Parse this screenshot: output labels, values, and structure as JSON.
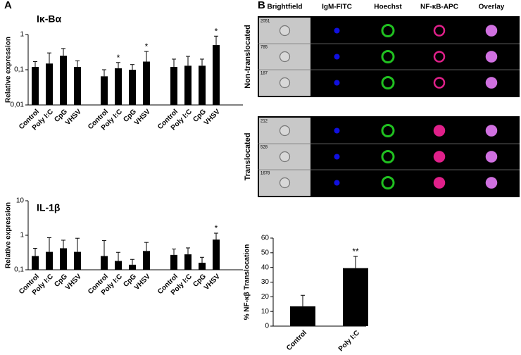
{
  "panel_labels": [
    "A",
    "B"
  ],
  "chart_data": [
    {
      "type": "bar",
      "title": "Iκ-Bα",
      "y_label": "Relative expression",
      "log_scale": true,
      "color": "#000000",
      "categories": [
        "Control",
        "Poly I:C",
        "CpG",
        "VHSV",
        "Control",
        "Poly I:C",
        "CpG",
        "VHSV",
        "Control",
        "Poly I:C",
        "CpG",
        "VHSV"
      ],
      "values": [
        0.12,
        0.15,
        0.25,
        0.12,
        0.065,
        0.11,
        0.1,
        0.17,
        0.12,
        0.13,
        0.13,
        0.5
      ],
      "errors": [
        0.05,
        0.15,
        0.15,
        0.06,
        0.035,
        0.05,
        0.04,
        0.16,
        0.08,
        0.11,
        0.07,
        0.4
      ],
      "significance": [
        null,
        null,
        null,
        null,
        null,
        "*",
        null,
        "*",
        null,
        null,
        null,
        "*"
      ],
      "ylim": [
        0.01,
        1
      ],
      "yticks": [
        {
          "value": 0.01,
          "label": "0,01"
        },
        {
          "value": 0.1,
          "label": "0,1"
        },
        1
      ]
    },
    {
      "type": "bar",
      "title": "IL-1β",
      "y_label": "Relative expression",
      "log_scale": true,
      "color": "#000000",
      "categories": [
        "Control",
        "Poly I:C",
        "CpG",
        "VHSV",
        "Control",
        "Poly I:C",
        "CpG",
        "VHSV",
        "Control",
        "Poly I:C",
        "CpG",
        "VHSV"
      ],
      "values": [
        0.25,
        0.33,
        0.42,
        0.33,
        0.25,
        0.18,
        0.14,
        0.35,
        0.27,
        0.28,
        0.16,
        0.75
      ],
      "errors": [
        0.17,
        0.52,
        0.3,
        0.49,
        0.45,
        0.14,
        0.06,
        0.27,
        0.13,
        0.15,
        0.07,
        0.4
      ],
      "significance": [
        null,
        null,
        null,
        null,
        null,
        null,
        null,
        null,
        null,
        null,
        null,
        "*"
      ],
      "ylim": [
        0.1,
        10
      ],
      "yticks": [
        {
          "value": 0.1,
          "label": "0,1"
        },
        1,
        10
      ]
    },
    {
      "type": "bar",
      "y_label": "% NF-κβ Translocation",
      "log_scale": false,
      "color": "#000000",
      "categories": [
        "Control",
        "Poly I:C"
      ],
      "values": [
        13.5,
        39.5
      ],
      "errors": [
        7.5,
        8
      ],
      "significance": [
        null,
        "**"
      ],
      "ylim": [
        0,
        60
      ],
      "yticks": [
        0,
        10,
        20,
        30,
        40,
        50,
        60
      ]
    }
  ],
  "imaging": {
    "columns": [
      "Brightfield",
      "IgM-FITC",
      "Hoechst",
      "NF-κB-APC",
      "Overlay"
    ],
    "row_groups": [
      {
        "label": "Non-translocated",
        "ids": [
          "2051",
          "785",
          "187"
        ]
      },
      {
        "label": "Translocated",
        "ids": [
          "212",
          "528",
          "1678"
        ]
      }
    ]
  }
}
